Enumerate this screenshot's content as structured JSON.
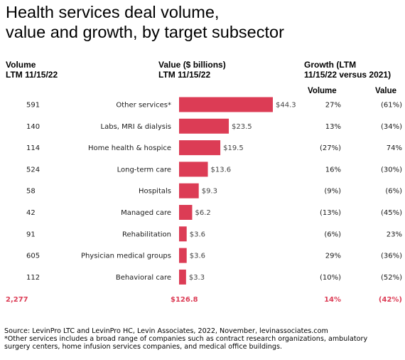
{
  "title_line1": "Health services deal volume,",
  "title_line2": "value and growth, by target subsector",
  "headers": {
    "volume": [
      "Volume",
      "LTM 11/15/22"
    ],
    "value": [
      "Value ($ billions)",
      "LTM 11/15/22"
    ],
    "growth": [
      "Growth (LTM",
      "11/15/22 versus 2021)"
    ],
    "growth_volume": "Volume",
    "growth_value": "Value"
  },
  "colors": {
    "bar": "#dc3c55",
    "total_text": "#dc3c55"
  },
  "chart_data": {
    "type": "bar",
    "orientation": "horizontal",
    "title": "Health services deal volume, value and growth, by target subsector",
    "categories": [
      "Other services*",
      "Labs, MRI & dialysis",
      "Home health & hospice",
      "Long-term care",
      "Hospitals",
      "Managed care",
      "Rehabilitation",
      "Physician medical groups",
      "Behavioral care"
    ],
    "values": [
      44.3,
      23.5,
      19.5,
      13.6,
      9.3,
      6.2,
      3.6,
      3.6,
      3.3
    ],
    "value_labels": [
      "$44.3",
      "$23.5",
      "$19.5",
      "$13.6",
      "$9.3",
      "$6.2",
      "$3.6",
      "$3.6",
      "$3.3"
    ],
    "volume": [
      "591",
      "140",
      "114",
      "524",
      "58",
      "42",
      "91",
      "605",
      "112"
    ],
    "growth_volume": [
      "27%",
      "13%",
      "(27%)",
      "16%",
      "(9%)",
      "(13%)",
      "(6%)",
      "29%",
      "(10%)"
    ],
    "growth_value": [
      "(61%)",
      "(34%)",
      "74%",
      "(30%)",
      "(6%)",
      "(45%)",
      "23%",
      "(36%)",
      "(52%)"
    ],
    "totals": {
      "volume": "2,277",
      "value": "$126.8",
      "growth_volume": "14%",
      "growth_value": "(42%)"
    },
    "xlim": [
      0,
      44.3
    ],
    "grid": false,
    "legend": "none"
  },
  "footnote_source": "Source: LevinPro LTC and LevinPro HC, Levin Associates, 2022, November, levinassociates.com",
  "footnote_other_line1": "*Other services includes a broad range of companies such as contract research organizations, ambulatory",
  "footnote_other_line2": "surgery centers, home infusion services companies, and medical office buildings."
}
